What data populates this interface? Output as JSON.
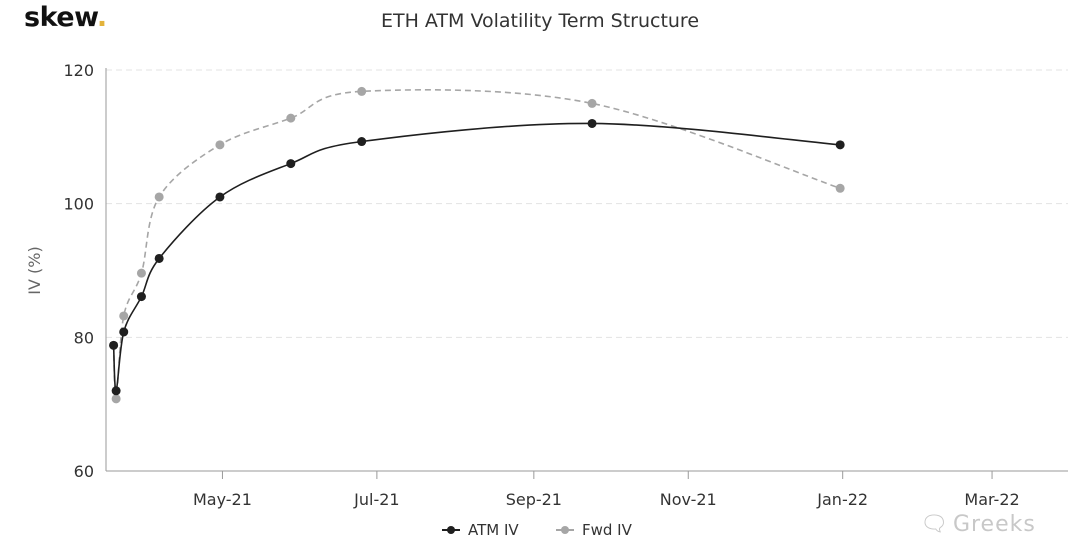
{
  "brand": {
    "name": "skew",
    "dot": "."
  },
  "watermark": {
    "icon": "wechat-icon",
    "text": "Greeks"
  },
  "chart_data": {
    "type": "line",
    "title": "ETH ATM Volatility Term Structure",
    "xlabel": "",
    "ylabel": "IV (%)",
    "ylim": [
      60,
      120
    ],
    "yticks": [
      60,
      80,
      100,
      120
    ],
    "xlim": [
      "2021-03-16",
      "2022-03-31"
    ],
    "xticks": [
      {
        "date": "2021-05-01",
        "label": "May-21"
      },
      {
        "date": "2021-07-01",
        "label": "Jul-21"
      },
      {
        "date": "2021-09-01",
        "label": "Sep-21"
      },
      {
        "date": "2021-11-01",
        "label": "Nov-21"
      },
      {
        "date": "2022-01-01",
        "label": "Jan-22"
      },
      {
        "date": "2022-03-01",
        "label": "Mar-22"
      }
    ],
    "grid": "horizontal dashed",
    "legend_position": "bottom-center",
    "series": [
      {
        "name": "ATM IV",
        "color": "#1f1f1f",
        "style": "solid",
        "points": [
          {
            "x": "2021-03-19",
            "y": 78.8
          },
          {
            "x": "2021-03-20",
            "y": 72.0
          },
          {
            "x": "2021-03-23",
            "y": 80.8
          },
          {
            "x": "2021-03-30",
            "y": 86.1
          },
          {
            "x": "2021-04-06",
            "y": 91.8
          },
          {
            "x": "2021-04-30",
            "y": 101.0
          },
          {
            "x": "2021-05-28",
            "y": 106.0
          },
          {
            "x": "2021-06-25",
            "y": 109.3
          },
          {
            "x": "2021-09-24",
            "y": 112.0
          },
          {
            "x": "2021-12-31",
            "y": 108.8
          }
        ]
      },
      {
        "name": "Fwd IV",
        "color": "#a6a6a6",
        "style": "dashed",
        "points": [
          {
            "x": "2021-03-19",
            "y": 78.8
          },
          {
            "x": "2021-03-20",
            "y": 70.8
          },
          {
            "x": "2021-03-23",
            "y": 83.2
          },
          {
            "x": "2021-03-30",
            "y": 89.6
          },
          {
            "x": "2021-04-06",
            "y": 101.0
          },
          {
            "x": "2021-04-30",
            "y": 108.8
          },
          {
            "x": "2021-05-28",
            "y": 112.8
          },
          {
            "x": "2021-06-25",
            "y": 116.8
          },
          {
            "x": "2021-09-24",
            "y": 115.0
          },
          {
            "x": "2021-12-31",
            "y": 102.3
          }
        ]
      }
    ]
  }
}
